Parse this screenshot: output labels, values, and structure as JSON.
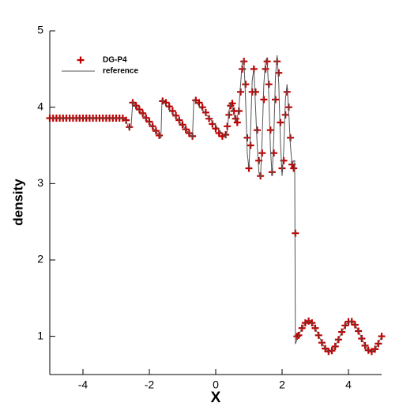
{
  "chart_data": {
    "type": "scatter",
    "x_label": "X",
    "y_label": "density",
    "xlim": [
      -5,
      5
    ],
    "ylim": [
      0.5,
      5
    ],
    "xticks": [
      -4,
      -2,
      0,
      2,
      4
    ],
    "yticks": [
      1,
      2,
      3,
      4,
      5
    ],
    "legend": "top-left",
    "series": [
      {
        "name": "DG-P4",
        "color": "#c00000",
        "mode": "markers",
        "x": [
          -5.0,
          -4.9,
          -4.8,
          -4.7,
          -4.6,
          -4.5,
          -4.4,
          -4.3,
          -4.2,
          -4.1,
          -4.0,
          -3.9,
          -3.8,
          -3.7,
          -3.6,
          -3.5,
          -3.4,
          -3.3,
          -3.2,
          -3.1,
          -3.0,
          -2.9,
          -2.8,
          -2.7,
          -2.6,
          -2.5,
          -2.4,
          -2.3,
          -2.2,
          -2.1,
          -2.0,
          -1.9,
          -1.8,
          -1.7,
          -1.6,
          -1.5,
          -1.4,
          -1.3,
          -1.2,
          -1.1,
          -1.0,
          -0.9,
          -0.8,
          -0.7,
          -0.6,
          -0.5,
          -0.4,
          -0.3,
          -0.2,
          -0.1,
          0.0,
          0.1,
          0.2,
          0.3,
          0.35,
          0.4,
          0.45,
          0.5,
          0.55,
          0.6,
          0.65,
          0.7,
          0.75,
          0.8,
          0.85,
          0.9,
          0.95,
          1.0,
          1.05,
          1.1,
          1.15,
          1.2,
          1.25,
          1.3,
          1.35,
          1.4,
          1.45,
          1.5,
          1.55,
          1.6,
          1.65,
          1.7,
          1.75,
          1.8,
          1.85,
          1.9,
          1.95,
          2.0,
          2.05,
          2.1,
          2.15,
          2.2,
          2.25,
          2.3,
          2.35,
          2.4,
          2.45,
          2.5,
          2.6,
          2.7,
          2.8,
          2.9,
          3.0,
          3.1,
          3.2,
          3.3,
          3.4,
          3.5,
          3.6,
          3.7,
          3.8,
          3.9,
          4.0,
          4.1,
          4.2,
          4.3,
          4.4,
          4.5,
          4.6,
          4.7,
          4.8,
          4.9,
          5.0
        ],
        "values": [
          3.857,
          3.857,
          3.857,
          3.857,
          3.857,
          3.857,
          3.857,
          3.857,
          3.857,
          3.857,
          3.857,
          3.857,
          3.857,
          3.857,
          3.857,
          3.857,
          3.857,
          3.857,
          3.857,
          3.857,
          3.857,
          3.857,
          3.857,
          3.83,
          3.74,
          4.06,
          4.02,
          3.97,
          3.92,
          3.86,
          3.81,
          3.75,
          3.69,
          3.63,
          4.08,
          4.06,
          4.01,
          3.95,
          3.89,
          3.83,
          3.77,
          3.71,
          3.66,
          3.62,
          4.09,
          4.06,
          4.0,
          3.93,
          3.85,
          3.78,
          3.72,
          3.66,
          3.62,
          3.64,
          3.75,
          3.9,
          4.02,
          4.05,
          3.95,
          3.85,
          3.8,
          3.95,
          4.2,
          4.5,
          4.6,
          4.3,
          3.6,
          3.2,
          3.5,
          4.2,
          4.5,
          4.2,
          3.7,
          3.3,
          3.1,
          3.4,
          4.1,
          4.5,
          4.6,
          4.3,
          3.7,
          3.15,
          3.4,
          4.1,
          4.6,
          4.45,
          3.8,
          3.2,
          3.3,
          3.9,
          4.2,
          4.0,
          3.6,
          3.25,
          3.2,
          2.35,
          1.0,
          1.014,
          1.108,
          1.176,
          1.2,
          1.176,
          1.108,
          1.014,
          0.917,
          0.84,
          0.802,
          0.813,
          0.868,
          0.958,
          1.057,
          1.142,
          1.192,
          1.195,
          1.151,
          1.069,
          0.971,
          0.879,
          0.818,
          0.801,
          0.832,
          0.905,
          1.001
        ]
      },
      {
        "name": "reference",
        "color": "#555555",
        "mode": "line",
        "x": [
          -5.0,
          -2.8,
          -2.7,
          -2.62,
          -2.55,
          -2.5,
          -1.65,
          -1.62,
          -0.7,
          -0.66,
          0.3,
          0.35,
          0.4,
          0.45,
          0.5,
          0.55,
          0.6,
          0.65,
          0.7,
          0.75,
          0.8,
          0.85,
          0.9,
          0.95,
          1.0,
          1.05,
          1.1,
          1.15,
          1.2,
          1.25,
          1.3,
          1.35,
          1.4,
          1.45,
          1.5,
          1.55,
          1.6,
          1.65,
          1.7,
          1.75,
          1.8,
          1.85,
          1.9,
          1.95,
          2.0,
          2.05,
          2.1,
          2.15,
          2.2,
          2.25,
          2.3,
          2.35,
          2.38,
          2.4,
          2.5,
          2.6,
          2.7,
          2.8,
          2.9,
          3.0,
          3.1,
          3.2,
          3.3,
          3.4,
          3.5,
          3.6,
          3.7,
          3.8,
          3.9,
          4.0,
          4.1,
          4.2,
          4.3,
          4.4,
          4.5,
          4.6,
          4.7,
          4.8,
          4.9,
          5.0
        ],
        "values": [
          3.857,
          3.857,
          3.82,
          3.72,
          3.75,
          4.07,
          3.6,
          4.1,
          3.6,
          4.1,
          3.6,
          3.7,
          3.95,
          4.05,
          4.0,
          3.9,
          3.82,
          3.85,
          4.0,
          4.3,
          4.6,
          4.62,
          4.1,
          3.4,
          3.2,
          3.7,
          4.35,
          4.5,
          4.0,
          3.5,
          3.15,
          3.08,
          3.6,
          4.3,
          4.6,
          4.65,
          4.15,
          3.45,
          3.1,
          3.6,
          4.4,
          4.68,
          4.3,
          3.55,
          3.1,
          3.45,
          4.1,
          4.3,
          3.95,
          3.5,
          3.25,
          3.3,
          3.3,
          0.9,
          1.014,
          1.108,
          1.176,
          1.2,
          1.176,
          1.108,
          1.014,
          0.917,
          0.84,
          0.802,
          0.813,
          0.868,
          0.958,
          1.057,
          1.142,
          1.192,
          1.195,
          1.151,
          1.069,
          0.971,
          0.879,
          0.818,
          0.801,
          0.832,
          0.905,
          1.001
        ]
      }
    ]
  }
}
